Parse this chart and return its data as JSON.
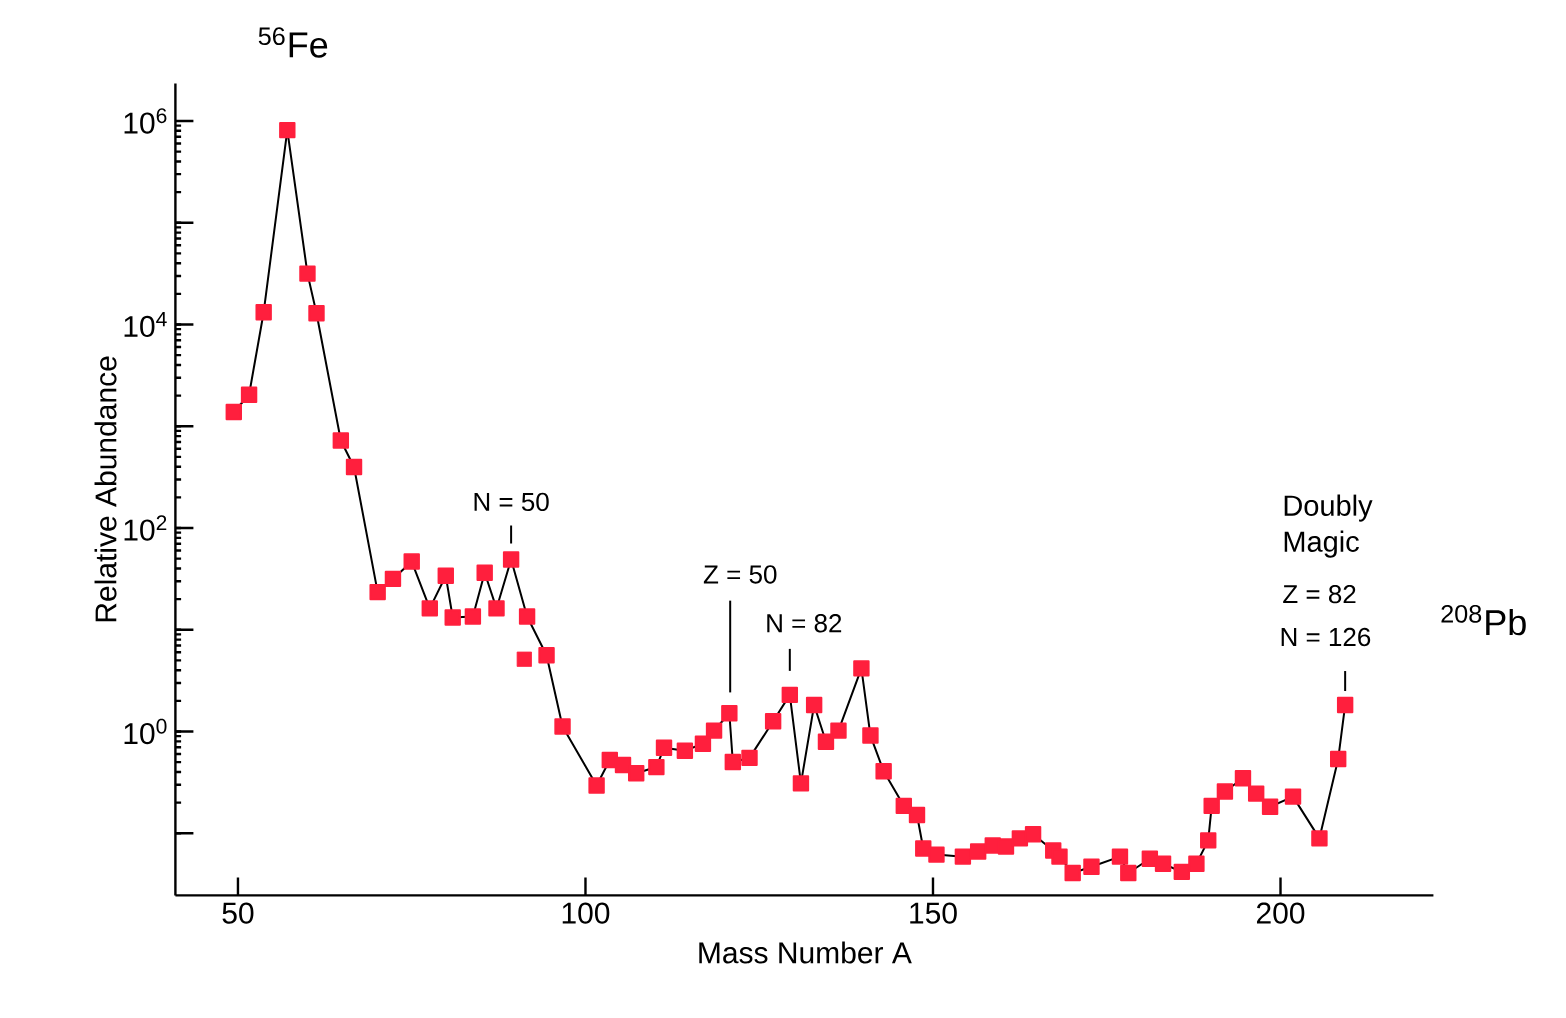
{
  "chart_data": {
    "type": "line",
    "xlabel": "Mass Number A",
    "ylabel": "Relative Abundance",
    "log": "y",
    "marker": "square",
    "xlim": [
      41,
      222
    ],
    "ylim": [
      0.0245,
      2340000
    ],
    "xticks": [
      50,
      100,
      150,
      200
    ],
    "yticks": [
      {
        "value": 0.1,
        "label": null
      },
      {
        "value": 1,
        "label": "10$^{0}$"
      },
      {
        "value": 10,
        "label": null
      },
      {
        "value": 100,
        "label": "10$^{2}$"
      },
      {
        "value": 1000,
        "label": null
      },
      {
        "value": 10000,
        "label": "10$^{4}$"
      },
      {
        "value": 100000,
        "label": null
      },
      {
        "value": 1000000,
        "label": "10$^{6}$"
      }
    ],
    "series": [
      {
        "color": "#ff1f3d",
        "x": [
          49.4,
          51.6,
          53.7,
          57.1,
          60.0,
          61.3,
          64.8,
          66.7,
          70.1,
          72.3,
          75.0,
          77.6,
          79.9,
          80.9,
          83.8,
          85.5,
          87.2,
          89.3,
          91.6,
          94.4,
          96.7,
          101.6,
          103.5,
          105.4,
          107.3,
          110.2,
          111.3,
          114.3,
          116.9,
          118.5,
          120.7,
          121.2,
          123.6,
          127.0,
          129.4,
          131.0,
          132.9,
          134.6,
          136.4,
          139.7,
          141.0,
          142.9,
          145.8,
          147.7,
          148.6,
          150.5,
          154.3,
          156.5,
          158.6,
          160.5,
          162.5,
          164.4,
          167.3,
          168.2,
          170.1,
          172.8,
          176.9,
          178.1,
          181.2,
          183.1,
          185.8,
          187.9,
          189.6,
          190.1,
          192.0,
          194.6,
          196.5,
          198.5,
          201.8,
          205.6,
          208.3,
          209.3
        ],
        "values": [
          1380,
          2040,
          13200,
          813000,
          31600,
          12900,
          724,
          398,
          23.4,
          31.6,
          46.8,
          16.2,
          33.9,
          13.2,
          13.5,
          36.3,
          16.2,
          49.0,
          13.5,
          5.62,
          1.12,
          0.295,
          0.525,
          0.468,
          0.389,
          0.447,
          0.692,
          0.646,
          0.759,
          1.02,
          1.51,
          0.501,
          0.55,
          1.26,
          2.29,
          0.309,
          1.82,
          0.794,
          1.02,
          4.17,
          0.912,
          0.407,
          0.186,
          0.151,
          0.0708,
          0.0617,
          0.0589,
          0.0661,
          0.0759,
          0.0741,
          0.0891,
          0.0977,
          0.0676,
          0.0589,
          0.0407,
          0.0468,
          0.0589,
          0.0407,
          0.0562,
          0.0501,
          0.0417,
          0.0501,
          0.0851,
          0.186,
          0.257,
          0.347,
          0.245,
          0.182,
          0.229,
          0.0891,
          0.537,
          1.82
        ]
      },
      {
        "type": "scatter",
        "color": "#ff1f3d",
        "x": [
          91.2
        ],
        "values": [
          5.13
        ]
      }
    ],
    "annotations": [
      {
        "text": "$^{56}$Fe",
        "x": 57.1,
        "y": 813000
      },
      {
        "text": "N = 50",
        "x": 89.3,
        "y": 49.0
      },
      "Z = 50",
      {
        "text": "N = 82",
        "x": 129.4,
        "y": 2.29
      },
      "Doubly Magic",
      "Z = 82",
      {
        "text": "N = 126",
        "x": 209.3,
        "y": 1.82
      },
      "$^{208}$Pb"
    ]
  }
}
